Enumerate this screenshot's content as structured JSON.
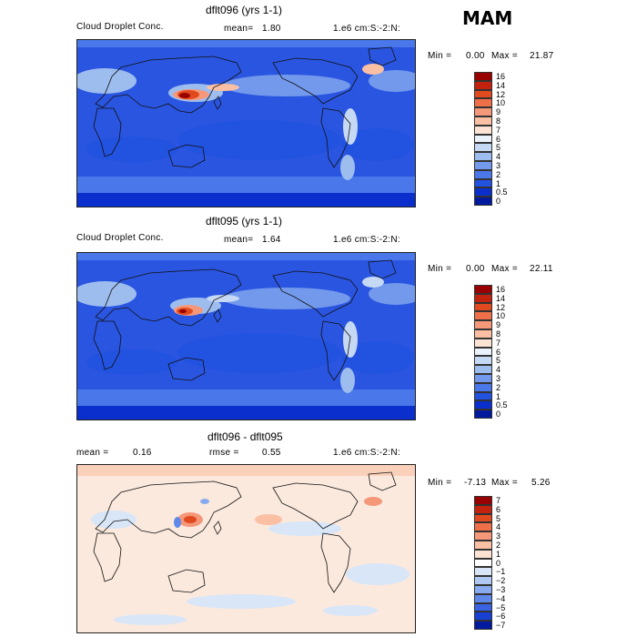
{
  "season": "MAM",
  "panels": [
    {
      "title": "dflt096 (yrs 1-1)",
      "variable": "Cloud Droplet Conc.",
      "stat1_label": "mean=",
      "stat1_value": "1.80",
      "units": "1.e6 cm:S:-2:N:",
      "min_label": "Min =",
      "min_value": "0.00",
      "max_label": "Max =",
      "max_value": "21.87",
      "colorbar_labels": [
        "16",
        "14",
        "12",
        "10",
        "9",
        "8",
        "7",
        "6",
        "5",
        "4",
        "3",
        "2",
        "1",
        "0.5",
        "0"
      ],
      "colorbar_colors": [
        "#990000",
        "#c2220e",
        "#e04a1e",
        "#ef7048",
        "#f5987a",
        "#fbbfa4",
        "#fde3d4",
        "#eaf2fc",
        "#c6d9f4",
        "#9dbdef",
        "#7299ec",
        "#4a78ea",
        "#2252e0",
        "#0a2fcc",
        "#001a9e"
      ]
    },
    {
      "title": "dflt095 (yrs 1-1)",
      "variable": "Cloud Droplet Conc.",
      "stat1_label": "mean=",
      "stat1_value": "1.64",
      "units": "1.e6 cm:S:-2:N:",
      "min_label": "Min =",
      "min_value": "0.00",
      "max_label": "Max =",
      "max_value": "22.11",
      "colorbar_labels": [
        "16",
        "14",
        "12",
        "10",
        "9",
        "8",
        "7",
        "6",
        "5",
        "4",
        "3",
        "2",
        "1",
        "0.5",
        "0"
      ],
      "colorbar_colors": [
        "#990000",
        "#c2220e",
        "#e04a1e",
        "#ef7048",
        "#f5987a",
        "#fbbfa4",
        "#fde3d4",
        "#eaf2fc",
        "#c6d9f4",
        "#9dbdef",
        "#7299ec",
        "#4a78ea",
        "#2252e0",
        "#0a2fcc",
        "#001a9e"
      ]
    },
    {
      "title": "dflt096 - dflt095",
      "stat1_label": "mean =",
      "stat1_value": "0.16",
      "stat2_label": "rmse =",
      "stat2_value": "0.55",
      "units": "1.e6 cm:S:-2:N:",
      "min_label": "Min =",
      "min_value": "-7.13",
      "max_label": "Max =",
      "max_value": "5.26",
      "colorbar_labels": [
        "7",
        "6",
        "5",
        "4",
        "3",
        "2",
        "1",
        "0",
        "−1",
        "−2",
        "−3",
        "−4",
        "−5",
        "−6",
        "−7"
      ],
      "colorbar_colors": [
        "#990000",
        "#c2220e",
        "#e04a1e",
        "#ef7048",
        "#f5987a",
        "#fbbfa4",
        "#fde3d4",
        "#ffffff",
        "#d8e6f8",
        "#b0c9f2",
        "#88aaee",
        "#5f88eb",
        "#3a63e4",
        "#1840d2",
        "#001a9e"
      ]
    }
  ]
}
